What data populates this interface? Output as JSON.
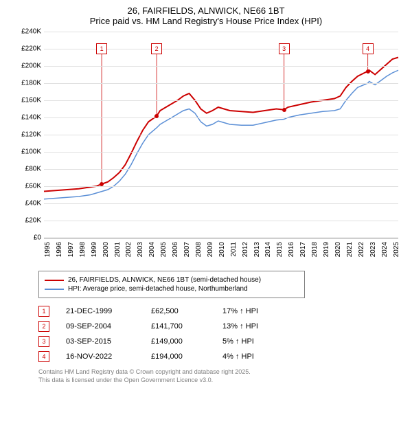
{
  "title": {
    "line1": "26, FAIRFIELDS, ALNWICK, NE66 1BT",
    "line2": "Price paid vs. HM Land Registry's House Price Index (HPI)"
  },
  "chart": {
    "type": "line",
    "background_color": "#ffffff",
    "grid_color": "#e0e0e0",
    "axis_color": "#808080",
    "tick_fontsize": 10,
    "title_fontsize": 13,
    "xlim": [
      1995,
      2025.5
    ],
    "ylim": [
      0,
      240000
    ],
    "ytick_step": 20000,
    "yticks": [
      "£0",
      "£20K",
      "£40K",
      "£60K",
      "£80K",
      "£100K",
      "£120K",
      "£140K",
      "£160K",
      "£180K",
      "£200K",
      "£220K",
      "£240K"
    ],
    "xticks": [
      1995,
      1996,
      1997,
      1998,
      1999,
      2000,
      2001,
      2002,
      2003,
      2004,
      2005,
      2006,
      2007,
      2008,
      2009,
      2010,
      2011,
      2012,
      2013,
      2014,
      2015,
      2016,
      2017,
      2018,
      2019,
      2020,
      2021,
      2022,
      2023,
      2024,
      2025
    ],
    "series": [
      {
        "name": "26, FAIRFIELDS, ALNWICK, NE66 1BT (semi-detached house)",
        "color": "#cc0000",
        "line_width": 2,
        "data": [
          [
            1995,
            54000
          ],
          [
            1996,
            55000
          ],
          [
            1997,
            56000
          ],
          [
            1998,
            57000
          ],
          [
            1998.5,
            58000
          ],
          [
            1999,
            59000
          ],
          [
            1999.5,
            60000
          ],
          [
            1999.97,
            62500
          ],
          [
            2000.5,
            65000
          ],
          [
            2001,
            70000
          ],
          [
            2001.5,
            76000
          ],
          [
            2002,
            85000
          ],
          [
            2002.5,
            98000
          ],
          [
            2003,
            112000
          ],
          [
            2003.5,
            125000
          ],
          [
            2004,
            135000
          ],
          [
            2004.7,
            141700
          ],
          [
            2005,
            148000
          ],
          [
            2005.5,
            152000
          ],
          [
            2006,
            156000
          ],
          [
            2006.5,
            160000
          ],
          [
            2007,
            165000
          ],
          [
            2007.5,
            168000
          ],
          [
            2008,
            160000
          ],
          [
            2008.5,
            150000
          ],
          [
            2009,
            145000
          ],
          [
            2009.5,
            148000
          ],
          [
            2010,
            152000
          ],
          [
            2010.5,
            150000
          ],
          [
            2011,
            148000
          ],
          [
            2012,
            147000
          ],
          [
            2013,
            146000
          ],
          [
            2014,
            148000
          ],
          [
            2015,
            150000
          ],
          [
            2015.67,
            149000
          ],
          [
            2016,
            152000
          ],
          [
            2017,
            155000
          ],
          [
            2018,
            158000
          ],
          [
            2019,
            160000
          ],
          [
            2020,
            162000
          ],
          [
            2020.5,
            165000
          ],
          [
            2021,
            175000
          ],
          [
            2021.5,
            182000
          ],
          [
            2022,
            188000
          ],
          [
            2022.88,
            194000
          ],
          [
            2023,
            195000
          ],
          [
            2023.5,
            190000
          ],
          [
            2024,
            196000
          ],
          [
            2024.5,
            202000
          ],
          [
            2025,
            208000
          ],
          [
            2025.5,
            210000
          ]
        ]
      },
      {
        "name": "HPI: Average price, semi-detached house, Northumberland",
        "color": "#5b8fd6",
        "line_width": 1.5,
        "data": [
          [
            1995,
            45000
          ],
          [
            1996,
            46000
          ],
          [
            1997,
            47000
          ],
          [
            1998,
            48000
          ],
          [
            1999,
            50000
          ],
          [
            1999.5,
            52000
          ],
          [
            2000,
            54000
          ],
          [
            2000.5,
            56000
          ],
          [
            2001,
            60000
          ],
          [
            2001.5,
            66000
          ],
          [
            2002,
            74000
          ],
          [
            2002.5,
            85000
          ],
          [
            2003,
            98000
          ],
          [
            2003.5,
            110000
          ],
          [
            2004,
            120000
          ],
          [
            2004.7,
            128000
          ],
          [
            2005,
            132000
          ],
          [
            2005.5,
            136000
          ],
          [
            2006,
            140000
          ],
          [
            2006.5,
            144000
          ],
          [
            2007,
            148000
          ],
          [
            2007.5,
            150000
          ],
          [
            2008,
            145000
          ],
          [
            2008.5,
            135000
          ],
          [
            2009,
            130000
          ],
          [
            2009.5,
            132000
          ],
          [
            2010,
            136000
          ],
          [
            2010.5,
            134000
          ],
          [
            2011,
            132000
          ],
          [
            2012,
            131000
          ],
          [
            2013,
            131000
          ],
          [
            2014,
            134000
          ],
          [
            2015,
            137000
          ],
          [
            2015.67,
            138000
          ],
          [
            2016,
            140000
          ],
          [
            2017,
            143000
          ],
          [
            2018,
            145000
          ],
          [
            2019,
            147000
          ],
          [
            2020,
            148000
          ],
          [
            2020.5,
            150000
          ],
          [
            2021,
            160000
          ],
          [
            2021.5,
            168000
          ],
          [
            2022,
            175000
          ],
          [
            2022.88,
            180000
          ],
          [
            2023,
            182000
          ],
          [
            2023.5,
            178000
          ],
          [
            2024,
            183000
          ],
          [
            2024.5,
            188000
          ],
          [
            2025,
            192000
          ],
          [
            2025.5,
            195000
          ]
        ]
      }
    ],
    "markers": [
      {
        "n": "1",
        "x": 1999.97,
        "y": 62500,
        "box_y": 220000,
        "date": "21-DEC-1999",
        "price": "£62,500",
        "pct": "17% ↑ HPI"
      },
      {
        "n": "2",
        "x": 2004.7,
        "y": 141700,
        "box_y": 220000,
        "date": "09-SEP-2004",
        "price": "£141,700",
        "pct": "13% ↑ HPI"
      },
      {
        "n": "3",
        "x": 2015.67,
        "y": 149000,
        "box_y": 220000,
        "date": "03-SEP-2015",
        "price": "£149,000",
        "pct": "5% ↑ HPI"
      },
      {
        "n": "4",
        "x": 2022.88,
        "y": 194000,
        "box_y": 220000,
        "date": "16-NOV-2022",
        "price": "£194,000",
        "pct": "4% ↑ HPI"
      }
    ],
    "marker_border_color": "#cc0000",
    "marker_anchor_color": "#cc0000"
  },
  "legend": [
    {
      "color": "#cc0000",
      "label": "26, FAIRFIELDS, ALNWICK, NE66 1BT (semi-detached house)"
    },
    {
      "color": "#5b8fd6",
      "label": "HPI: Average price, semi-detached house, Northumberland"
    }
  ],
  "footer": {
    "line1": "Contains HM Land Registry data © Crown copyright and database right 2025.",
    "line2": "This data is licensed under the Open Government Licence v3.0."
  }
}
